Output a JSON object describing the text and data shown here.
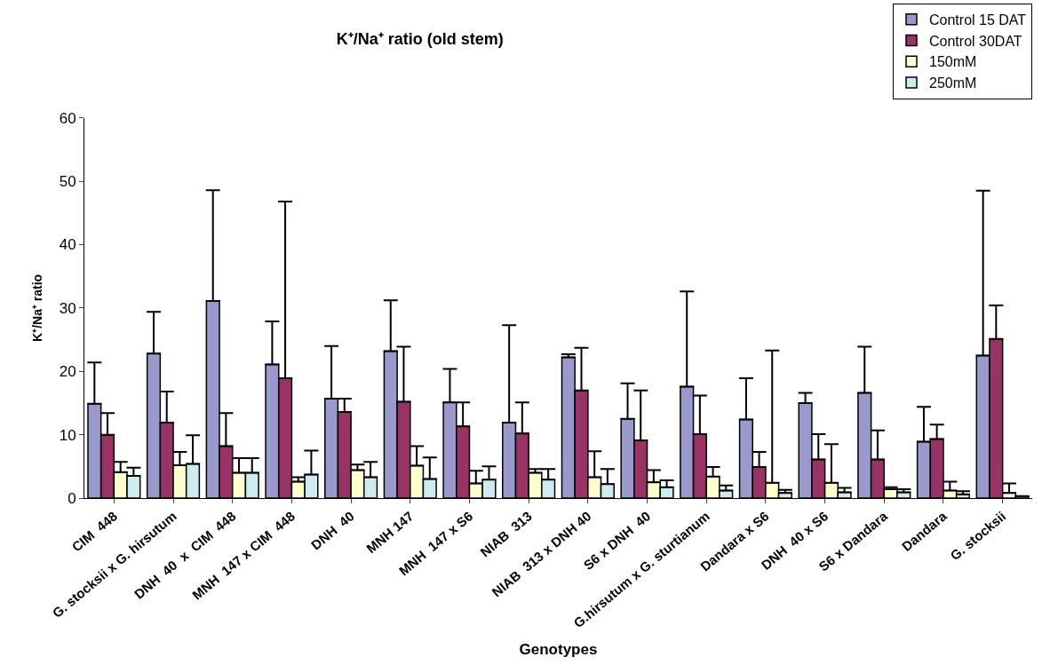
{
  "chart_data": {
    "type": "bar",
    "title": "K⁺/Na⁺ ratio (old stem)",
    "xlabel": "Genotypes",
    "ylabel": "K⁺/Na⁺ ratio",
    "categories": [
      "CIM  448",
      "G. stocksii x G. hirsutum",
      "DNH  40  x  CIM  448",
      "MNH  147 x CIM  448",
      "DNH  40",
      "MNH 147",
      "MNH  147 x S6",
      "NIAB  313",
      "NIAB  313 x DNH 40",
      "S6 x DNH  40",
      "G.hirsutum x G. sturtianum",
      "Dandara x S6",
      "DNH  40 x S6",
      "S6 x Dandara",
      "Dandara",
      "G. stocksii"
    ],
    "series": [
      {
        "name": "Control 15 DAT",
        "color": "#9999cc",
        "values": [
          14.9,
          22.8,
          31.1,
          21.1,
          15.7,
          23.2,
          15.1,
          11.9,
          22.2,
          12.5,
          17.6,
          12.4,
          15,
          16.6,
          8.9,
          22.5
        ],
        "errors": [
          [
            14.9,
            21.4
          ],
          [
            22.8,
            29.4
          ],
          [
            31.1,
            48.6
          ],
          [
            21.1,
            27.9
          ],
          [
            15.7,
            24
          ],
          [
            23.2,
            31.2
          ],
          [
            15.1,
            20.4
          ],
          [
            11.9,
            27.3
          ],
          [
            22.2,
            22.7
          ],
          [
            12.5,
            18.1
          ],
          [
            17.6,
            32.6
          ],
          [
            12.4,
            18.9
          ],
          [
            15,
            16.6
          ],
          [
            16.6,
            23.9
          ],
          [
            8.9,
            14.4
          ],
          [
            22.5,
            48.5
          ]
        ]
      },
      {
        "name": "Control 30DAT",
        "color": "#993366",
        "values": [
          10,
          11.9,
          8.2,
          18.9,
          13.6,
          15.2,
          11.3,
          10.2,
          17,
          9.1,
          10.1,
          4.9,
          6.1,
          6.1,
          9.3,
          25.1
        ],
        "errors": [
          [
            10,
            13.4
          ],
          [
            11.9,
            16.8
          ],
          [
            8.2,
            13.4
          ],
          [
            18.9,
            46.8
          ],
          [
            13.6,
            15.7
          ],
          [
            15.2,
            23.9
          ],
          [
            11.3,
            15.1
          ],
          [
            10.2,
            15.1
          ],
          [
            17,
            23.7
          ],
          [
            9.1,
            17
          ],
          [
            10.1,
            16.2
          ],
          [
            4.9,
            7.3
          ],
          [
            6.1,
            10.1
          ],
          [
            6.1,
            10.7
          ],
          [
            9.3,
            11.6
          ],
          [
            25.1,
            30.4
          ]
        ]
      },
      {
        "name": "150mM",
        "color": "#ffffcc",
        "values": [
          4.1,
          5.2,
          4,
          2.6,
          4.4,
          5.1,
          2.3,
          4,
          3.3,
          2.5,
          3.4,
          2.4,
          2.4,
          1.4,
          1.2,
          0.8
        ],
        "errors": [
          [
            4.1,
            5.7
          ],
          [
            5.2,
            7.3
          ],
          [
            4,
            6.3
          ],
          [
            2.6,
            3.3
          ],
          [
            4.4,
            5.3
          ],
          [
            5.1,
            8.2
          ],
          [
            2.3,
            4.3
          ],
          [
            4,
            4.6
          ],
          [
            3.3,
            7.4
          ],
          [
            2.5,
            4.4
          ],
          [
            3.4,
            4.9
          ],
          [
            2.4,
            23.3
          ],
          [
            2.4,
            8.5
          ],
          [
            1.4,
            1.7
          ],
          [
            1.2,
            2.6
          ],
          [
            0.8,
            2.3
          ]
        ]
      },
      {
        "name": "250mM",
        "color": "#ccecf0",
        "values": [
          3.5,
          5.4,
          4,
          3.7,
          3.3,
          3,
          2.9,
          2.9,
          2.2,
          1.7,
          1.2,
          0.8,
          0.9,
          0.9,
          0.6,
          0.3
        ],
        "errors": [
          [
            3.5,
            4.8
          ],
          [
            5.4,
            9.9
          ],
          [
            4,
            6.3
          ],
          [
            3.7,
            7.5
          ],
          [
            3.3,
            5.7
          ],
          [
            3,
            6.4
          ],
          [
            2.9,
            5
          ],
          [
            2.9,
            4.6
          ],
          [
            2.2,
            4.6
          ],
          [
            1.7,
            2.8
          ],
          [
            1.2,
            2
          ],
          [
            0.8,
            1.3
          ],
          [
            0.9,
            1.6
          ],
          [
            0.9,
            1.4
          ],
          [
            0.6,
            1.1
          ],
          null
        ]
      }
    ],
    "ylim": [
      0,
      60
    ],
    "yticks": [
      0,
      10,
      20,
      30,
      40,
      50,
      60
    ],
    "legend": "top right"
  }
}
